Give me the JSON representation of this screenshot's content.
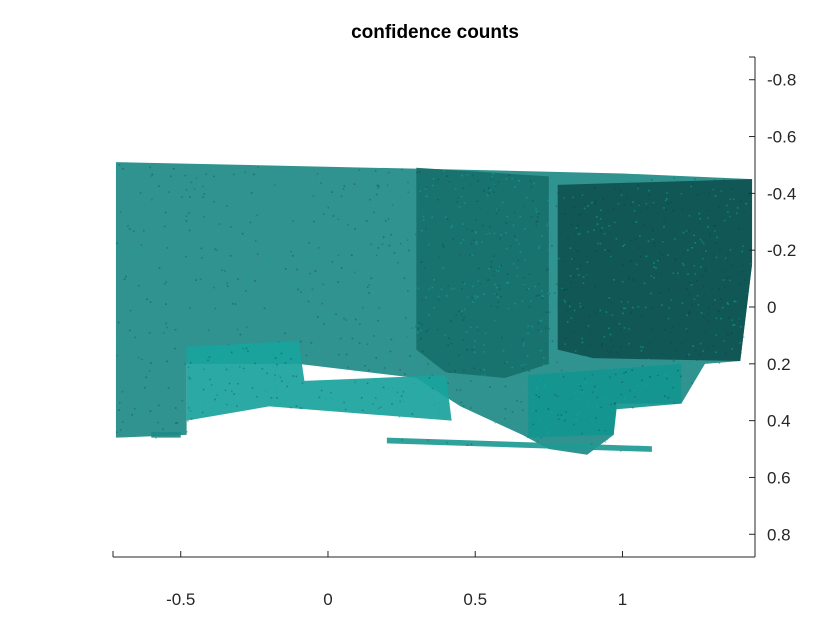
{
  "chart_data": {
    "type": "scatter",
    "title": "confidence counts",
    "xlabel": "",
    "ylabel": "",
    "xlim": [
      -0.73,
      1.45
    ],
    "ylim": [
      -0.88,
      0.88
    ],
    "y_reversed": true,
    "y_axis_location": "right",
    "grid": false,
    "legend": "none",
    "x_ticks": [
      -0.5,
      0,
      0.5,
      1
    ],
    "x_tick_labels": [
      "-0.5",
      "0",
      "0.5",
      "1"
    ],
    "y_ticks": [
      -0.8,
      -0.6,
      -0.4,
      -0.2,
      0,
      0.2,
      0.4,
      0.6,
      0.8
    ],
    "y_tick_labels": [
      "-0.8",
      "-0.6",
      "-0.4",
      "-0.2",
      "0",
      "0.2",
      "0.4",
      "0.6",
      "0.8"
    ],
    "series": [
      {
        "point_color_low": "#0a3f3e",
        "point_color_high": "#12a8a2",
        "regions": [
          {
            "polygon": [
              [
                -0.72,
                -0.51
              ],
              [
                0.6,
                -0.48
              ],
              [
                1.0,
                -0.47
              ],
              [
                1.44,
                -0.45
              ],
              [
                1.44,
                -0.15
              ],
              [
                1.4,
                0.19
              ],
              [
                1.28,
                0.2
              ],
              [
                1.2,
                0.34
              ],
              [
                0.98,
                0.34
              ],
              [
                0.97,
                0.45
              ],
              [
                0.88,
                0.52
              ],
              [
                0.75,
                0.5
              ],
              [
                0.66,
                0.45
              ],
              [
                0.45,
                0.35
              ],
              [
                0.3,
                0.25
              ],
              [
                -0.1,
                0.2
              ],
              [
                -0.48,
                0.2
              ],
              [
                -0.48,
                0.45
              ],
              [
                -0.72,
                0.46
              ],
              [
                -0.72,
                0.3
              ]
            ],
            "color": "#1e8a86"
          },
          {
            "polygon": [
              [
                0.3,
                -0.49
              ],
              [
                0.75,
                -0.46
              ],
              [
                0.75,
                0.2
              ],
              [
                0.6,
                0.25
              ],
              [
                0.4,
                0.23
              ],
              [
                0.3,
                0.15
              ]
            ],
            "color": "#17706d"
          },
          {
            "polygon": [
              [
                0.78,
                -0.43
              ],
              [
                1.44,
                -0.45
              ],
              [
                1.44,
                -0.15
              ],
              [
                1.4,
                0.19
              ],
              [
                0.9,
                0.18
              ],
              [
                0.78,
                0.15
              ]
            ],
            "color": "#0e5150"
          },
          {
            "polygon": [
              [
                -0.48,
                0.14
              ],
              [
                -0.1,
                0.12
              ],
              [
                -0.08,
                0.26
              ],
              [
                0.4,
                0.24
              ],
              [
                0.42,
                0.4
              ],
              [
                -0.2,
                0.35
              ],
              [
                -0.48,
                0.4
              ]
            ],
            "color": "#19a39d"
          },
          {
            "polygon": [
              [
                0.68,
                0.24
              ],
              [
                1.2,
                0.2
              ],
              [
                1.2,
                0.34
              ],
              [
                0.98,
                0.36
              ],
              [
                0.97,
                0.45
              ],
              [
                0.68,
                0.46
              ]
            ],
            "color": "#149590"
          },
          {
            "polygon": [
              [
                -0.6,
                0.44
              ],
              [
                -0.5,
                0.44
              ],
              [
                -0.5,
                0.46
              ],
              [
                -0.6,
                0.46
              ]
            ],
            "color": "#1e8a86"
          },
          {
            "polygon": [
              [
                0.2,
                0.46
              ],
              [
                1.1,
                0.49
              ],
              [
                1.1,
                0.51
              ],
              [
                0.2,
                0.48
              ]
            ],
            "color": "#1f9993"
          }
        ]
      }
    ]
  }
}
